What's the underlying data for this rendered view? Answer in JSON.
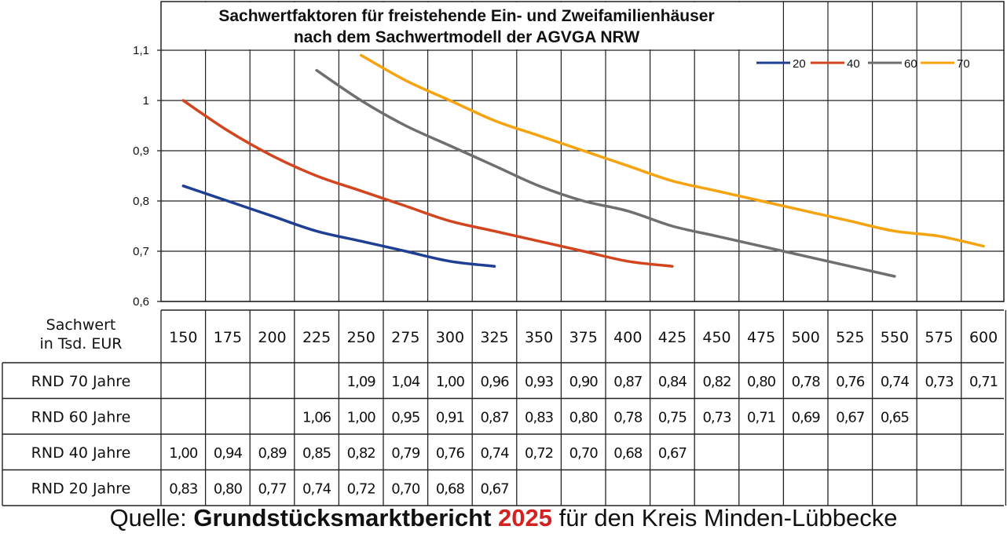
{
  "chart_data": {
    "type": "line",
    "title_lines": [
      "Sachwertfaktoren für freistehende Ein- und Zweifamilienhäuser",
      "nach dem Sachwertmodell der AGVGA NRW"
    ],
    "ylim": [
      0.6,
      1.1
    ],
    "yticks": [
      "0,6",
      "0,7",
      "0,8",
      "0,9",
      "1",
      "1,1"
    ],
    "grid": true,
    "legend_position": "top-right",
    "x": [
      150,
      175,
      200,
      225,
      250,
      275,
      300,
      325,
      350,
      375,
      400,
      425,
      450,
      475,
      500,
      525,
      550,
      575,
      600
    ],
    "series": [
      {
        "name": "20",
        "color": "#1f3f94",
        "values": [
          0.83,
          0.8,
          0.77,
          0.74,
          0.72,
          0.7,
          0.68,
          0.67,
          null,
          null,
          null,
          null,
          null,
          null,
          null,
          null,
          null,
          null,
          null
        ]
      },
      {
        "name": "40",
        "color": "#d2451e",
        "values": [
          1.0,
          0.94,
          0.89,
          0.85,
          0.82,
          0.79,
          0.76,
          0.74,
          0.72,
          0.7,
          0.68,
          0.67,
          null,
          null,
          null,
          null,
          null,
          null,
          null
        ]
      },
      {
        "name": "60",
        "color": "#6f6f6f",
        "values": [
          null,
          null,
          null,
          1.06,
          1.0,
          0.95,
          0.91,
          0.87,
          0.83,
          0.8,
          0.78,
          0.75,
          0.73,
          0.71,
          0.69,
          0.67,
          0.65,
          null,
          null
        ]
      },
      {
        "name": "70",
        "color": "#f5a30f",
        "values": [
          null,
          null,
          null,
          null,
          1.09,
          1.04,
          1.0,
          0.96,
          0.93,
          0.9,
          0.87,
          0.84,
          0.82,
          0.8,
          0.78,
          0.76,
          0.74,
          0.73,
          0.71
        ]
      }
    ]
  },
  "table": {
    "header_label_lines": [
      "Sachwert",
      "in Tsd. EUR"
    ],
    "columns": [
      "150",
      "175",
      "200",
      "225",
      "250",
      "275",
      "300",
      "325",
      "350",
      "375",
      "400",
      "425",
      "450",
      "475",
      "500",
      "525",
      "550",
      "575",
      "600"
    ],
    "rows": [
      {
        "label": "RND 70 Jahre",
        "values": [
          "",
          "",
          "",
          "",
          "1,09",
          "1,04",
          "1,00",
          "0,96",
          "0,93",
          "0,90",
          "0,87",
          "0,84",
          "0,82",
          "0,80",
          "0,78",
          "0,76",
          "0,74",
          "0,73",
          "0,71"
        ]
      },
      {
        "label": "RND 60 Jahre",
        "values": [
          "",
          "",
          "",
          "1,06",
          "1,00",
          "0,95",
          "0,91",
          "0,87",
          "0,83",
          "0,80",
          "0,78",
          "0,75",
          "0,73",
          "0,71",
          "0,69",
          "0,67",
          "0,65",
          "",
          ""
        ]
      },
      {
        "label": "RND 40 Jahre",
        "values": [
          "1,00",
          "0,94",
          "0,89",
          "0,85",
          "0,82",
          "0,79",
          "0,76",
          "0,74",
          "0,72",
          "0,70",
          "0,68",
          "0,67",
          "",
          "",
          "",
          "",
          "",
          "",
          ""
        ]
      },
      {
        "label": "RND 20 Jahre",
        "values": [
          "0,83",
          "0,80",
          "0,77",
          "0,74",
          "0,72",
          "0,70",
          "0,68",
          "0,67",
          "",
          "",
          "",
          "",
          "",
          "",
          "",
          "",
          "",
          "",
          ""
        ]
      }
    ]
  },
  "source": {
    "prefix": "Quelle: ",
    "report": "Grundstücksmarktbericht",
    "year": "2025",
    "suffix": "für den Kreis Minden-Lübbecke"
  }
}
